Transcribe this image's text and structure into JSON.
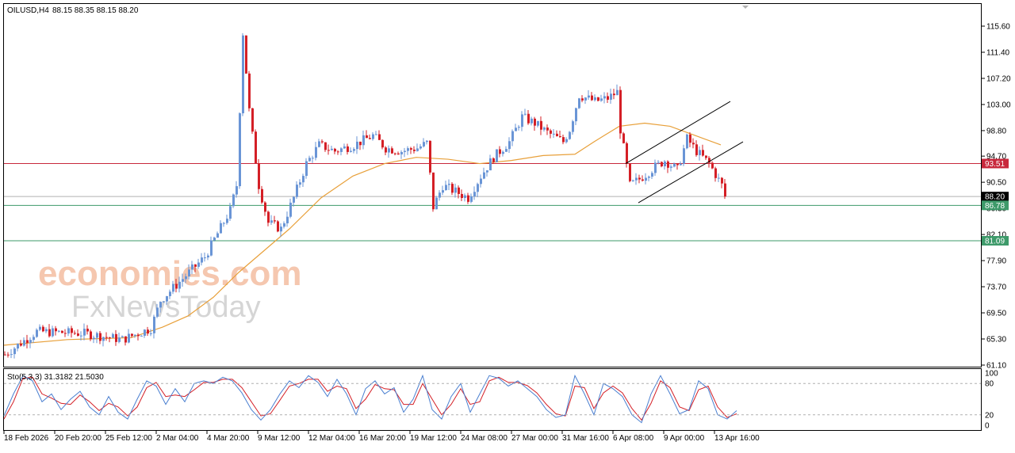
{
  "header": {
    "symbol": "OILUSD,H4",
    "ohlc": "88.15 88.35 88.15 88.20"
  },
  "stochastic": {
    "label": "Sto(5,3,3) 31.3182 21.5030",
    "levels": [
      "100",
      "80",
      "20",
      "0"
    ]
  },
  "watermark": {
    "line1": "economies.com",
    "line2": "FxNewsToday"
  },
  "colors": {
    "bull": "#6a95d6",
    "bear": "#d41f26",
    "ma": "#e8a03a",
    "resistance": "#c8283c",
    "support": "#3e9a6a",
    "current": "#000000",
    "stoch_main": "#4a7fd0",
    "stoch_signal": "#d41f26"
  },
  "chart_data": {
    "type": "candlestick",
    "y_ticks": [
      "115.60",
      "111.40",
      "107.20",
      "103.00",
      "98.80",
      "94.70",
      "90.50",
      "86.30",
      "82.10",
      "77.90",
      "73.70",
      "69.50",
      "65.30",
      "61.10"
    ],
    "x_labels": [
      "18 Feb 2026",
      "20 Feb 20:00",
      "25 Feb 12:00",
      "2 Mar 04:00",
      "4 Mar 20:00",
      "9 Mar 12:00",
      "12 Mar 04:00",
      "16 Mar 20:00",
      "19 Mar 12:00",
      "24 Mar 08:00",
      "27 Mar 00:00",
      "31 Mar 16:00",
      "6 Apr 08:00",
      "9 Apr 00:00",
      "13 Apr 16:00"
    ],
    "ylim": [
      61.1,
      115.6
    ],
    "horizontal_levels": [
      {
        "label": "93.51",
        "value": 93.51,
        "kind": "resistance"
      },
      {
        "label": "88.20",
        "value": 88.2,
        "kind": "current"
      },
      {
        "label": "86.78",
        "value": 86.78,
        "kind": "support"
      },
      {
        "label": "81.09",
        "value": 81.09,
        "kind": "support"
      }
    ],
    "price_path": [
      [
        0,
        62.8
      ],
      [
        10,
        66.5
      ],
      [
        25,
        66.2
      ],
      [
        37,
        65.2
      ],
      [
        46,
        67.0
      ],
      [
        49,
        71.5
      ],
      [
        56,
        75.0
      ],
      [
        63,
        78.5
      ],
      [
        71,
        86.0
      ],
      [
        73,
        90.0
      ],
      [
        75,
        114.5
      ],
      [
        77,
        102.0
      ],
      [
        80,
        90.0
      ],
      [
        83,
        84.0
      ],
      [
        87,
        83.0
      ],
      [
        91,
        88.0
      ],
      [
        95,
        93.5
      ],
      [
        99,
        96.5
      ],
      [
        104,
        95.5
      ],
      [
        110,
        96.5
      ],
      [
        116,
        98.0
      ],
      [
        120,
        96.0
      ],
      [
        125,
        95.5
      ],
      [
        130,
        96.0
      ],
      [
        133,
        96.8
      ],
      [
        135,
        86.5
      ],
      [
        138,
        90.0
      ],
      [
        142,
        89.0
      ],
      [
        146,
        88.0
      ],
      [
        150,
        91.5
      ],
      [
        154,
        94.5
      ],
      [
        159,
        97.0
      ],
      [
        163,
        101.0
      ],
      [
        167,
        100.0
      ],
      [
        171,
        98.5
      ],
      [
        176,
        97.0
      ],
      [
        178,
        99.0
      ],
      [
        181,
        104.5
      ],
      [
        186,
        103.5
      ],
      [
        190,
        104.0
      ],
      [
        193,
        105.0
      ],
      [
        194,
        99.0
      ],
      [
        197,
        90.0
      ],
      [
        200,
        91.0
      ],
      [
        205,
        93.0
      ],
      [
        208,
        94.0
      ],
      [
        212,
        92.5
      ],
      [
        215,
        97.5
      ],
      [
        218,
        95.5
      ],
      [
        222,
        93.5
      ],
      [
        226,
        90.0
      ],
      [
        227,
        88.2
      ]
    ],
    "moving_average": [
      [
        0,
        64.3
      ],
      [
        20,
        65.2
      ],
      [
        40,
        65.5
      ],
      [
        50,
        67.2
      ],
      [
        58,
        69.0
      ],
      [
        66,
        72.0
      ],
      [
        74,
        76.0
      ],
      [
        82,
        79.5
      ],
      [
        90,
        83.0
      ],
      [
        100,
        88.0
      ],
      [
        110,
        91.5
      ],
      [
        120,
        93.5
      ],
      [
        130,
        94.5
      ],
      [
        140,
        94.2
      ],
      [
        150,
        93.5
      ],
      [
        160,
        94.0
      ],
      [
        170,
        94.8
      ],
      [
        180,
        95.0
      ],
      [
        186,
        97.0
      ],
      [
        194,
        99.5
      ],
      [
        202,
        100.0
      ],
      [
        210,
        99.5
      ],
      [
        218,
        98.0
      ],
      [
        226,
        96.5
      ]
    ],
    "channel": {
      "upper": [
        [
          196,
          93.5
        ],
        [
          229,
          103.5
        ]
      ],
      "lower": [
        [
          200,
          87.2
        ],
        [
          233,
          97.0
        ]
      ]
    },
    "stochastic_main": [
      [
        0,
        18
      ],
      [
        3,
        60
      ],
      [
        6,
        95
      ],
      [
        9,
        85
      ],
      [
        12,
        45
      ],
      [
        15,
        60
      ],
      [
        18,
        30
      ],
      [
        21,
        50
      ],
      [
        24,
        65
      ],
      [
        27,
        35
      ],
      [
        30,
        20
      ],
      [
        33,
        55
      ],
      [
        36,
        25
      ],
      [
        39,
        12
      ],
      [
        42,
        50
      ],
      [
        45,
        85
      ],
      [
        48,
        75
      ],
      [
        51,
        40
      ],
      [
        54,
        70
      ],
      [
        57,
        45
      ],
      [
        60,
        80
      ],
      [
        63,
        85
      ],
      [
        66,
        80
      ],
      [
        69,
        92
      ],
      [
        72,
        85
      ],
      [
        75,
        62
      ],
      [
        78,
        30
      ],
      [
        81,
        10
      ],
      [
        84,
        30
      ],
      [
        87,
        60
      ],
      [
        90,
        85
      ],
      [
        93,
        72
      ],
      [
        96,
        95
      ],
      [
        99,
        82
      ],
      [
        102,
        55
      ],
      [
        105,
        88
      ],
      [
        108,
        60
      ],
      [
        111,
        20
      ],
      [
        114,
        70
      ],
      [
        117,
        85
      ],
      [
        120,
        60
      ],
      [
        123,
        72
      ],
      [
        126,
        25
      ],
      [
        129,
        50
      ],
      [
        132,
        95
      ],
      [
        135,
        30
      ],
      [
        138,
        12
      ],
      [
        141,
        55
      ],
      [
        144,
        80
      ],
      [
        147,
        25
      ],
      [
        150,
        60
      ],
      [
        153,
        95
      ],
      [
        156,
        90
      ],
      [
        159,
        75
      ],
      [
        162,
        85
      ],
      [
        165,
        70
      ],
      [
        168,
        55
      ],
      [
        171,
        30
      ],
      [
        174,
        15
      ],
      [
        177,
        20
      ],
      [
        180,
        95
      ],
      [
        183,
        60
      ],
      [
        186,
        20
      ],
      [
        189,
        80
      ],
      [
        192,
        70
      ],
      [
        195,
        55
      ],
      [
        198,
        20
      ],
      [
        201,
        5
      ],
      [
        204,
        60
      ],
      [
        207,
        95
      ],
      [
        210,
        60
      ],
      [
        213,
        22
      ],
      [
        216,
        30
      ],
      [
        219,
        85
      ],
      [
        222,
        70
      ],
      [
        225,
        20
      ],
      [
        228,
        12
      ],
      [
        231,
        28
      ]
    ],
    "stochastic_signal": [
      [
        0,
        12
      ],
      [
        3,
        45
      ],
      [
        6,
        90
      ],
      [
        9,
        92
      ],
      [
        12,
        60
      ],
      [
        15,
        52
      ],
      [
        18,
        42
      ],
      [
        21,
        40
      ],
      [
        24,
        58
      ],
      [
        27,
        45
      ],
      [
        30,
        28
      ],
      [
        33,
        42
      ],
      [
        36,
        35
      ],
      [
        39,
        18
      ],
      [
        42,
        35
      ],
      [
        45,
        72
      ],
      [
        48,
        82
      ],
      [
        51,
        55
      ],
      [
        54,
        58
      ],
      [
        57,
        55
      ],
      [
        60,
        68
      ],
      [
        63,
        82
      ],
      [
        66,
        82
      ],
      [
        69,
        88
      ],
      [
        72,
        88
      ],
      [
        75,
        72
      ],
      [
        78,
        45
      ],
      [
        81,
        18
      ],
      [
        84,
        22
      ],
      [
        87,
        48
      ],
      [
        90,
        75
      ],
      [
        93,
        80
      ],
      [
        96,
        88
      ],
      [
        99,
        88
      ],
      [
        102,
        65
      ],
      [
        105,
        75
      ],
      [
        108,
        70
      ],
      [
        111,
        32
      ],
      [
        114,
        50
      ],
      [
        117,
        78
      ],
      [
        120,
        70
      ],
      [
        123,
        68
      ],
      [
        126,
        40
      ],
      [
        129,
        40
      ],
      [
        132,
        80
      ],
      [
        135,
        50
      ],
      [
        138,
        20
      ],
      [
        141,
        40
      ],
      [
        144,
        70
      ],
      [
        147,
        40
      ],
      [
        150,
        45
      ],
      [
        153,
        85
      ],
      [
        156,
        92
      ],
      [
        159,
        82
      ],
      [
        162,
        82
      ],
      [
        165,
        76
      ],
      [
        168,
        62
      ],
      [
        171,
        40
      ],
      [
        174,
        22
      ],
      [
        177,
        18
      ],
      [
        180,
        75
      ],
      [
        183,
        72
      ],
      [
        186,
        32
      ],
      [
        189,
        62
      ],
      [
        192,
        75
      ],
      [
        195,
        62
      ],
      [
        198,
        32
      ],
      [
        201,
        10
      ],
      [
        204,
        42
      ],
      [
        207,
        85
      ],
      [
        210,
        72
      ],
      [
        213,
        35
      ],
      [
        216,
        28
      ],
      [
        219,
        68
      ],
      [
        222,
        75
      ],
      [
        225,
        35
      ],
      [
        228,
        15
      ],
      [
        231,
        22
      ]
    ]
  }
}
